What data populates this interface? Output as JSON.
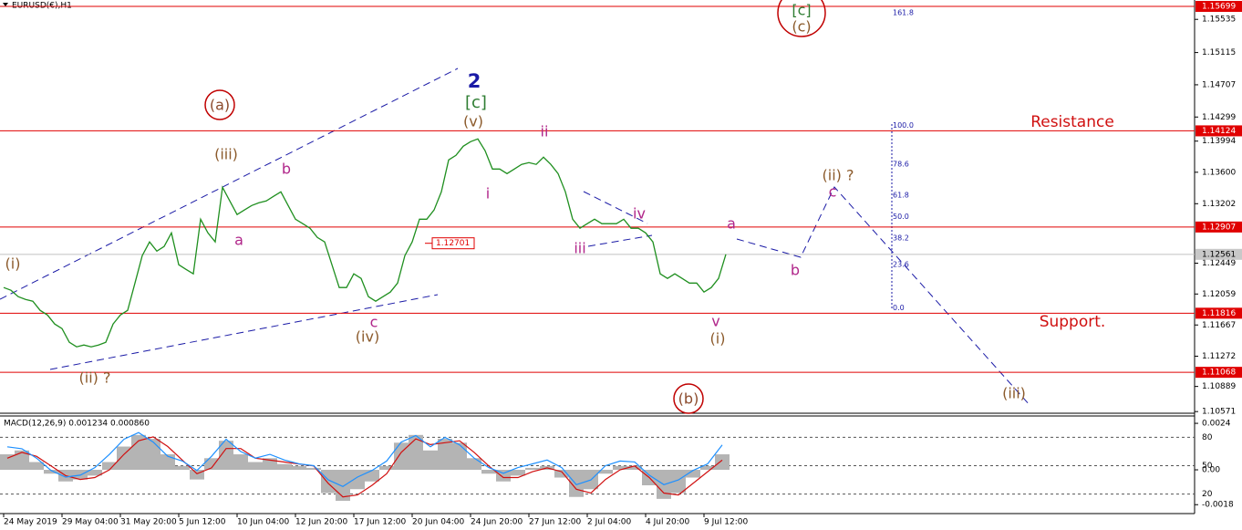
{
  "chart_data": [
    {
      "type": "line",
      "title": "EURUSD(€),H1",
      "categories": [
        "24 May 2019",
        null,
        null,
        null,
        null,
        null,
        null,
        null,
        "29 May 04:00",
        null,
        null,
        null,
        null,
        null,
        null,
        null,
        "31 May 20:00",
        null,
        null,
        null,
        null,
        null,
        null,
        null,
        "5 Jun 12:00",
        null,
        null,
        null,
        null,
        null,
        null,
        null,
        "10 Jun 04:00",
        null,
        null,
        null,
        null,
        null,
        null,
        null,
        "12 Jun 20:00",
        null,
        null,
        null,
        null,
        null,
        null,
        null,
        "17 Jun 12:00",
        null,
        null,
        null,
        null,
        null,
        null,
        null,
        "20 Jun 04:00",
        null,
        null,
        null,
        null,
        null,
        null,
        null,
        "24 Jun 20:00",
        null,
        null,
        null,
        null,
        null,
        null,
        null,
        "27 Jun 12:00",
        null,
        null,
        null,
        null,
        null,
        null,
        null,
        "2 Jul 04:00",
        null,
        null,
        null,
        null,
        null,
        null,
        null,
        "4 Jul 20:00",
        null,
        null,
        null,
        null,
        null,
        null,
        null,
        "9 Jul 12:00",
        null,
        null,
        null
      ],
      "series": [
        {
          "color": "#1f8f1f",
          "values": [
            1.12141,
            1.12106,
            1.12025,
            1.11991,
            1.11968,
            1.11852,
            1.11794,
            1.11679,
            1.11621,
            1.11448,
            1.1139,
            1.11414,
            1.1139,
            1.11414,
            1.11448,
            1.11679,
            1.11794,
            1.11852,
            1.12198,
            1.12545,
            1.12718,
            1.12602,
            1.1266,
            1.12833,
            1.12429,
            1.12371,
            1.12314,
            1.13006,
            1.12833,
            1.12718,
            1.1341,
            1.13237,
            1.13064,
            1.13122,
            1.13179,
            1.13214,
            1.13237,
            1.13295,
            1.13352,
            1.13179,
            1.13006,
            1.12949,
            1.12891,
            1.12775,
            1.12718,
            1.12429,
            1.12141,
            1.12141,
            1.12314,
            1.12256,
            1.12025,
            1.11968,
            1.12025,
            1.12083,
            1.12198,
            1.12545,
            1.12718,
            1.13006,
            1.13006,
            1.13122,
            1.13352,
            1.13756,
            1.13814,
            1.13929,
            1.13987,
            1.14022,
            1.13872,
            1.13641,
            1.13641,
            1.13583,
            1.13641,
            1.13699,
            1.13722,
            1.13699,
            1.13791,
            1.13699,
            1.13583,
            1.13352,
            1.13006,
            1.12891,
            1.12949,
            1.13006,
            1.12949,
            1.12949,
            1.12949,
            1.13006,
            1.12891,
            1.12891,
            1.12833,
            1.12718,
            1.12314,
            1.12256,
            1.12314,
            1.12256,
            1.12198,
            1.12198,
            1.12083,
            1.12141,
            1.12256,
            1.12561
          ]
        }
      ],
      "ylim": [
        1.1055,
        1.1578
      ],
      "yticks": [
        1.15535,
        1.15115,
        1.14707,
        1.14299,
        1.13994,
        {
          "value": 1.136,
          "label": "1.13600"
        },
        1.13202,
        1.12449,
        1.12059,
        1.11667,
        1.11272,
        1.10889,
        1.10571
      ],
      "levels": [
        1.15699,
        1.14124,
        1.12907,
        1.11816,
        1.11068
      ],
      "level_color": "#e00000",
      "current_price": 1.12561,
      "price_label": 1.12701,
      "fib_levels": [
        161.8,
        {
          "value": 100,
          "label": "100.0"
        },
        78.6,
        61.8,
        {
          "value": 50,
          "label": "50.0"
        },
        38.2,
        23.6,
        {
          "value": 0,
          "label": "0.0"
        }
      ],
      "annotations": [
        {
          "text": "(a)",
          "color": "#8b4a2b"
        },
        {
          "text": "(iii)",
          "color": "#8b5a2b"
        },
        {
          "text": "b",
          "color": "#b0268a"
        },
        {
          "text": "a",
          "color": "#b0268a"
        },
        {
          "text": "(i)",
          "color": "#8b5a2b"
        },
        {
          "text": "(ii) ?",
          "color": "#8b5a2b"
        },
        {
          "text": "c",
          "color": "#b0268a"
        },
        {
          "text": "(iv)",
          "color": "#8b5a2b"
        },
        {
          "text": "2",
          "color": "#1a1aa6"
        },
        {
          "text": "[c]",
          "color": "#2e7d32"
        },
        {
          "text": "(v)",
          "color": "#8b5a2b"
        },
        {
          "text": "ii",
          "color": "#b0268a"
        },
        {
          "text": "i",
          "color": "#b0268a"
        },
        {
          "text": "iii",
          "color": "#b0268a"
        },
        {
          "text": "iv",
          "color": "#b0268a"
        },
        {
          "text": "a",
          "color": "#b0268a"
        },
        {
          "text": "v",
          "color": "#b0268a"
        },
        {
          "text": "(i)",
          "color": "#8b5a2b"
        },
        {
          "text": "(ii) ?",
          "color": "#8b5a2b"
        },
        {
          "text": "c",
          "color": "#b0268a"
        },
        {
          "text": "b",
          "color": "#b0268a"
        },
        {
          "text": "(iii)",
          "color": "#8b5a2b"
        },
        {
          "text": "(b)",
          "color": "#8b4a2b"
        },
        {
          "text": "[c]",
          "color": "#2e7d32"
        },
        {
          "text": "(c)",
          "color": "#8b5a2b"
        },
        {
          "text": "Resistance",
          "color": "#d01010"
        },
        {
          "text": "Support.",
          "color": "#d01010"
        }
      ]
    },
    {
      "type": "macd",
      "title": "MACD(12,26,9) 0.001234 0.000860",
      "series": [
        {
          "color": "#b4b4b4",
          "values": [
            0.0008,
            0.001,
            0.0004,
            -0.0002,
            -0.0006,
            -0.0005,
            -0.0003,
            0.0004,
            0.0012,
            0.0018,
            0.0016,
            0.0008,
            0.0002,
            -0.0005,
            0.0006,
            0.0015,
            0.0008,
            0.0004,
            0.0006,
            0.0003,
            0.0002,
            0.0001,
            -0.0012,
            -0.0016,
            -0.001,
            -0.0006,
            0.0002,
            0.0014,
            0.0018,
            0.001,
            0.0016,
            0.0014,
            0.0006,
            -0.0002,
            -0.0006,
            -0.0003,
            0.0001,
            0.0002,
            -0.0004,
            -0.0014,
            -0.001,
            -0.0002,
            0.0002,
            0.0002,
            -0.0008,
            -0.0015,
            -0.0012,
            -0.0004,
            0.0002,
            0.0008
          ]
        },
        {
          "color": "#d01010",
          "values": [
            0.0006,
            0.0009,
            0.0007,
            0.0002,
            -0.0003,
            -0.0005,
            -0.0004,
            0,
            0.0008,
            0.0015,
            0.0017,
            0.0012,
            0.0005,
            -0.0002,
            0.0001,
            0.0011,
            0.0011,
            0.0006,
            0.0005,
            0.0004,
            0.0003,
            0.0002,
            -0.0007,
            -0.0014,
            -0.0013,
            -0.0008,
            -0.0002,
            0.0009,
            0.0016,
            0.0013,
            0.0014,
            0.0015,
            0.0009,
            0.0002,
            -0.0004,
            -0.0004,
            -0.0001,
            0.0001,
            -0.0001,
            -0.001,
            -0.0012,
            -0.0005,
            0,
            0.0002,
            -0.0004,
            -0.0012,
            -0.0013,
            -0.0007,
            -0.0001,
            0.0005
          ]
        },
        {
          "color": "#1e90ff",
          "axis": "y2",
          "values": [
            70,
            68,
            58,
            45,
            38,
            40,
            48,
            62,
            78,
            85,
            75,
            60,
            55,
            45,
            60,
            78,
            65,
            58,
            62,
            56,
            52,
            50,
            35,
            28,
            38,
            45,
            55,
            75,
            82,
            70,
            80,
            72,
            58,
            48,
            42,
            48,
            52,
            56,
            48,
            30,
            35,
            50,
            55,
            54,
            40,
            30,
            35,
            45,
            52,
            72
          ]
        }
      ],
      "ylim": [
        -0.00226,
        0.00278
      ],
      "yticks": [
        0.0024,
        {
          "value": 0,
          "label": "0.00"
        },
        -0.0018
      ],
      "y2lim": [
        -0.6,
        102.6
      ],
      "y2ticks": [
        80,
        50,
        20
      ]
    }
  ]
}
